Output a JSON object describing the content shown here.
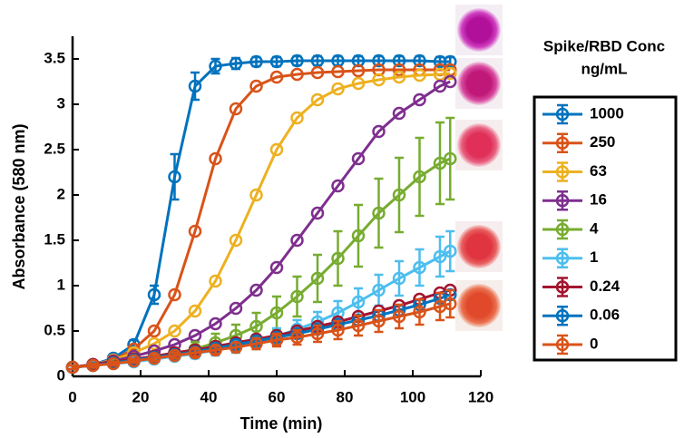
{
  "chart_data": {
    "type": "line",
    "x_label": "Time (min)",
    "y_label": "Absorbance (580 nm)",
    "legend_title": [
      "Spike/RBD Conc",
      "ng/mL"
    ],
    "xlim": [
      0,
      120
    ],
    "xticks": [
      0,
      20,
      40,
      60,
      80,
      100,
      120
    ],
    "ylim": [
      0,
      3.75
    ],
    "yticks": [
      0,
      0.5,
      1,
      1.5,
      2,
      2.5,
      3,
      3.5
    ],
    "x": [
      0,
      6,
      12,
      18,
      24,
      30,
      36,
      42,
      48,
      54,
      60,
      66,
      72,
      78,
      84,
      90,
      96,
      102,
      108,
      111
    ],
    "series": [
      {
        "name": "1000",
        "color": "#0072bd",
        "values": [
          0.1,
          0.13,
          0.2,
          0.35,
          0.9,
          2.2,
          3.2,
          3.42,
          3.45,
          3.47,
          3.47,
          3.48,
          3.48,
          3.48,
          3.48,
          3.48,
          3.48,
          3.48,
          3.47,
          3.47
        ],
        "errors": [
          0.02,
          0.02,
          0.03,
          0.05,
          0.1,
          0.25,
          0.15,
          0.08,
          0.06,
          0.05,
          0.05,
          0.05,
          0.05,
          0.05,
          0.05,
          0.05,
          0.05,
          0.05,
          0.05,
          0.05
        ]
      },
      {
        "name": "250",
        "color": "#d95319",
        "values": [
          0.1,
          0.13,
          0.18,
          0.3,
          0.5,
          0.9,
          1.6,
          2.4,
          2.95,
          3.2,
          3.3,
          3.33,
          3.35,
          3.36,
          3.37,
          3.38,
          3.38,
          3.38,
          3.38,
          3.38
        ]
      },
      {
        "name": "63",
        "color": "#edb120",
        "values": [
          0.1,
          0.13,
          0.18,
          0.26,
          0.36,
          0.5,
          0.72,
          1.05,
          1.5,
          2.0,
          2.5,
          2.85,
          3.05,
          3.17,
          3.23,
          3.27,
          3.3,
          3.32,
          3.33,
          3.34
        ]
      },
      {
        "name": "16",
        "color": "#7e2f8e",
        "values": [
          0.1,
          0.13,
          0.17,
          0.22,
          0.28,
          0.35,
          0.45,
          0.58,
          0.75,
          0.95,
          1.2,
          1.5,
          1.8,
          2.1,
          2.4,
          2.7,
          2.9,
          3.05,
          3.2,
          3.25
        ]
      },
      {
        "name": "4",
        "color": "#77ac30",
        "values": [
          0.1,
          0.12,
          0.15,
          0.18,
          0.21,
          0.25,
          0.3,
          0.37,
          0.45,
          0.55,
          0.7,
          0.88,
          1.08,
          1.3,
          1.55,
          1.8,
          2.0,
          2.2,
          2.35,
          2.4
        ],
        "errors": [
          0.02,
          0.02,
          0.03,
          0.04,
          0.05,
          0.06,
          0.08,
          0.1,
          0.12,
          0.15,
          0.18,
          0.22,
          0.26,
          0.3,
          0.34,
          0.38,
          0.41,
          0.43,
          0.45,
          0.45
        ]
      },
      {
        "name": "1",
        "color": "#4dbeee",
        "values": [
          0.1,
          0.12,
          0.14,
          0.16,
          0.19,
          0.22,
          0.25,
          0.29,
          0.33,
          0.38,
          0.44,
          0.52,
          0.6,
          0.7,
          0.82,
          0.95,
          1.08,
          1.2,
          1.32,
          1.38
        ],
        "errors": [
          0.02,
          0.02,
          0.02,
          0.03,
          0.03,
          0.04,
          0.05,
          0.06,
          0.07,
          0.08,
          0.09,
          0.1,
          0.11,
          0.13,
          0.15,
          0.17,
          0.19,
          0.2,
          0.22,
          0.22
        ]
      },
      {
        "name": "0.24",
        "color": "#a2142f",
        "values": [
          0.1,
          0.13,
          0.16,
          0.19,
          0.22,
          0.26,
          0.29,
          0.33,
          0.37,
          0.41,
          0.45,
          0.5,
          0.55,
          0.6,
          0.66,
          0.72,
          0.78,
          0.85,
          0.92,
          0.95
        ]
      },
      {
        "name": "0.06",
        "color": "#0072bd",
        "values": [
          0.1,
          0.12,
          0.15,
          0.18,
          0.21,
          0.24,
          0.27,
          0.31,
          0.35,
          0.39,
          0.43,
          0.47,
          0.52,
          0.57,
          0.62,
          0.67,
          0.73,
          0.79,
          0.86,
          0.9
        ]
      },
      {
        "name": "0",
        "color": "#d95319",
        "values": [
          0.1,
          0.12,
          0.14,
          0.17,
          0.2,
          0.23,
          0.26,
          0.29,
          0.32,
          0.36,
          0.4,
          0.43,
          0.47,
          0.51,
          0.56,
          0.61,
          0.66,
          0.71,
          0.77,
          0.8
        ],
        "errors": [
          0.02,
          0.02,
          0.02,
          0.02,
          0.03,
          0.03,
          0.04,
          0.04,
          0.05,
          0.06,
          0.07,
          0.08,
          0.09,
          0.1,
          0.11,
          0.12,
          0.13,
          0.14,
          0.15,
          0.15
        ]
      }
    ]
  }
}
